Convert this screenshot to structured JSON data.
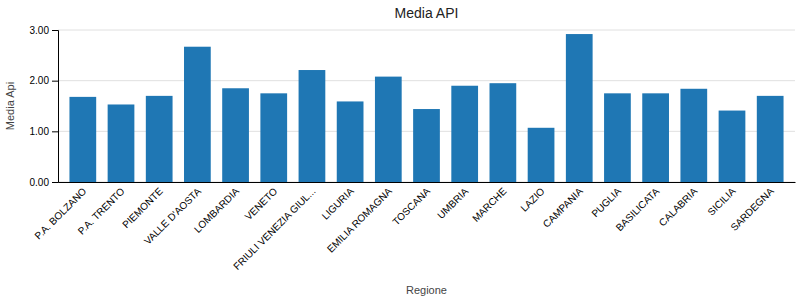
{
  "chart_data": {
    "type": "bar",
    "title": "Media API",
    "xlabel": "Regione",
    "ylabel": "Media Api",
    "categories": [
      "P.A. BOLZANO",
      "P.A. TRENTO",
      "PIEMONTE",
      "VALLE D'AOSTA",
      "LOMBARDIA",
      "VENETO",
      "FRIULI VENEZIA GIUL...",
      "LIGURIA",
      "EMILIA ROMAGNA",
      "TOSCANA",
      "UMBRIA",
      "MARCHE",
      "LAZIO",
      "CAMPANIA",
      "PUGLIA",
      "BASILICATA",
      "CALABRIA",
      "SICILIA",
      "SARDEGNA"
    ],
    "values": [
      1.68,
      1.53,
      1.7,
      2.67,
      1.85,
      1.75,
      2.21,
      1.59,
      2.08,
      1.44,
      1.9,
      1.95,
      1.07,
      2.92,
      1.75,
      1.75,
      1.84,
      1.41,
      1.7
    ],
    "ylim": [
      0,
      3.0
    ],
    "yticks": [
      {
        "value": 0,
        "label": "0.00"
      },
      {
        "value": 1,
        "label": "1.00"
      },
      {
        "value": 2,
        "label": "2.00"
      },
      {
        "value": 3,
        "label": "3.00"
      }
    ],
    "grid": true
  }
}
